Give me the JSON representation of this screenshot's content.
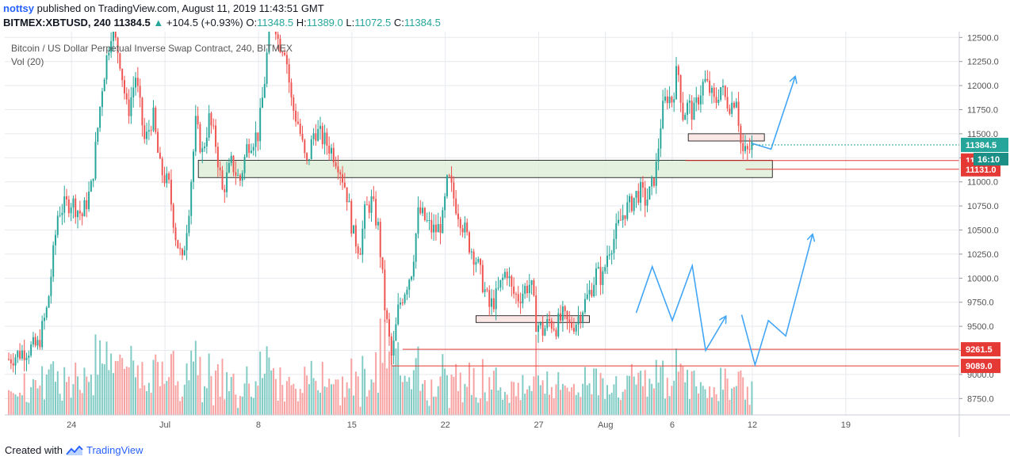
{
  "header": {
    "user": "nottsy",
    "published": "published on TradingView.com, August 11, 2019 11:43:51 GMT",
    "symbol": "BITMEX:XBTUSD, 240",
    "last": "11384.5",
    "change": "+104.5 (+0.93%)",
    "o_label": "O:",
    "o": "11348.5",
    "h_label": "H:",
    "h": "11389.0",
    "l_label": "L:",
    "l": "11072.5",
    "c_label": "C:",
    "c": "11384.5"
  },
  "legend": {
    "title": "Bitcoin / US Dollar Perpetual Inverse Swap Contract, 240, BITMEX",
    "vol": "Vol (20)"
  },
  "footer": {
    "created": "Created with",
    "brand": "TradingView"
  },
  "colors": {
    "up": "#26a69a",
    "down": "#ef5350",
    "volUp": "#80cbc4",
    "volDown": "#f7a1a1",
    "arrow": "#42a5f5",
    "zone": "#dfeed8",
    "zoneRed": "#fbe3e3",
    "grid": "#e6e9ee",
    "level": "#e53935",
    "priceTag": "#26a69a"
  },
  "chart_data": {
    "type": "candlestick",
    "y_axis_ticks": [
      8750,
      9000,
      9250,
      9500,
      9750,
      10000,
      10250,
      10500,
      10750,
      11000,
      11250,
      11500,
      11750,
      12000,
      12250,
      12500
    ],
    "y_axis_labels": [
      "8750.0",
      "9000.0",
      "9250.0",
      "9500.0",
      "9750.0",
      "10000.0",
      "10250.0",
      "10500.0",
      "10750.0",
      "11000.0",
      "11250.0",
      "11500.0",
      "11750.0",
      "12000.0",
      "12250.0",
      "12500.0"
    ],
    "ylim": [
      8580,
      12560
    ],
    "x_ticks": [
      {
        "day": 24,
        "label": "24"
      },
      {
        "day": 31,
        "label": "Jul"
      },
      {
        "day": 38,
        "label": "8"
      },
      {
        "day": 45,
        "label": "15"
      },
      {
        "day": 52,
        "label": "22"
      },
      {
        "day": 59,
        "label": "27"
      },
      {
        "day": 64,
        "label": "Aug"
      },
      {
        "day": 69,
        "label": "6"
      },
      {
        "day": 75,
        "label": "12"
      },
      {
        "day": 82,
        "label": "19"
      }
    ],
    "xlim": [
      19,
      90.5
    ],
    "close_path": [
      [
        19.3,
        9160
      ],
      [
        20.5,
        9250
      ],
      [
        21.5,
        9300
      ],
      [
        22.2,
        9700
      ],
      [
        23,
        10700
      ],
      [
        24,
        10800
      ],
      [
        24.8,
        10650
      ],
      [
        25.5,
        10950
      ],
      [
        26.3,
        12000
      ],
      [
        27,
        12600
      ],
      [
        27.6,
        12300
      ],
      [
        28.2,
        11700
      ],
      [
        28.8,
        12100
      ],
      [
        29.5,
        11400
      ],
      [
        30.1,
        11700
      ],
      [
        30.6,
        11150
      ],
      [
        31.3,
        10950
      ],
      [
        31.8,
        10450
      ],
      [
        32.3,
        10150
      ],
      [
        32.8,
        10750
      ],
      [
        33.3,
        11600
      ],
      [
        33.8,
        11300
      ],
      [
        34.3,
        11650
      ],
      [
        34.8,
        11400
      ],
      [
        35.3,
        10900
      ],
      [
        36,
        11200
      ],
      [
        36.6,
        11000
      ],
      [
        37.2,
        11400
      ],
      [
        38,
        11500
      ],
      [
        38.5,
        12100
      ],
      [
        39,
        12900
      ],
      [
        39.5,
        12450
      ],
      [
        40,
        12400
      ],
      [
        40.5,
        11800
      ],
      [
        41,
        11600
      ],
      [
        41.6,
        11150
      ],
      [
        42.2,
        11550
      ],
      [
        42.8,
        11450
      ],
      [
        43.4,
        11350
      ],
      [
        44,
        11200
      ],
      [
        44.6,
        10900
      ],
      [
        45.1,
        10450
      ],
      [
        45.6,
        10300
      ],
      [
        46,
        10700
      ],
      [
        46.5,
        10800
      ],
      [
        47,
        10500
      ],
      [
        47.5,
        9650
      ],
      [
        48,
        9150
      ],
      [
        48.5,
        9700
      ],
      [
        49,
        9900
      ],
      [
        49.5,
        10100
      ],
      [
        50,
        10700
      ],
      [
        50.5,
        10600
      ],
      [
        51,
        10500
      ],
      [
        51.4,
        10500
      ],
      [
        51.8,
        10600
      ],
      [
        52.2,
        11050
      ],
      [
        52.7,
        10800
      ],
      [
        53.2,
        10600
      ],
      [
        53.8,
        10350
      ],
      [
        54.3,
        10200
      ],
      [
        54.8,
        9950
      ],
      [
        55.3,
        9700
      ],
      [
        55.8,
        9800
      ],
      [
        56.2,
        9950
      ],
      [
        56.6,
        10100
      ],
      [
        57,
        9850
      ],
      [
        57.5,
        9800
      ],
      [
        58,
        9900
      ],
      [
        58.4,
        9950
      ],
      [
        58.8,
        9550
      ],
      [
        59.3,
        9450
      ],
      [
        59.8,
        9550
      ],
      [
        60.3,
        9500
      ],
      [
        60.8,
        9600
      ],
      [
        61.3,
        9500
      ],
      [
        61.8,
        9550
      ],
      [
        62.3,
        9700
      ],
      [
        62.8,
        9850
      ],
      [
        63.3,
        10050
      ],
      [
        63.8,
        10000
      ],
      [
        64.2,
        10300
      ],
      [
        64.6,
        10400
      ],
      [
        65,
        10550
      ],
      [
        65.4,
        10700
      ],
      [
        65.8,
        10750
      ],
      [
        66.2,
        10850
      ],
      [
        66.6,
        10900
      ],
      [
        67,
        10800
      ],
      [
        67.4,
        10900
      ],
      [
        67.8,
        11150
      ],
      [
        68.2,
        11700
      ],
      [
        68.6,
        11900
      ],
      [
        69,
        11850
      ],
      [
        69.4,
        12200
      ],
      [
        69.8,
        11700
      ],
      [
        70.2,
        11800
      ],
      [
        70.6,
        11700
      ],
      [
        71,
        11900
      ],
      [
        71.4,
        12050
      ],
      [
        71.8,
        11950
      ],
      [
        72.2,
        11800
      ],
      [
        72.6,
        12000
      ],
      [
        73,
        11850
      ],
      [
        73.4,
        11800
      ],
      [
        73.8,
        11900
      ],
      [
        74.2,
        11300
      ],
      [
        74.6,
        11300
      ],
      [
        75,
        11380
      ]
    ],
    "resistance_zones": [
      {
        "x1": 33.5,
        "x2": 76.5,
        "y1": 11045,
        "y2": 11225,
        "style": "green"
      },
      {
        "x1": 70.2,
        "x2": 75.9,
        "y1": 11425,
        "y2": 11500,
        "style": "red"
      },
      {
        "x1": 54.3,
        "x2": 62.8,
        "y1": 9540,
        "y2": 9610,
        "style": "red"
      }
    ],
    "levels": [
      {
        "value": 11222.0,
        "label": "11222.0",
        "from": 70.0
      },
      {
        "value": 11131.0,
        "label": "11131.0",
        "from": 74.5
      },
      {
        "value": 9261.5,
        "label": "9261.5",
        "from": 48.8
      },
      {
        "value": 9089.0,
        "label": "9089.0",
        "from": 48.0
      }
    ],
    "current_price": {
      "value": 11384.5,
      "label": "11384.5",
      "timer": "16:10"
    },
    "projection_arrows": [
      [
        [
          75.0,
          11400
        ],
        [
          76.4,
          11340
        ],
        [
          78.2,
          12090
        ]
      ],
      [
        [
          66.3,
          9640
        ],
        [
          67.5,
          10120
        ],
        [
          69.0,
          9560
        ],
        [
          70.5,
          10130
        ],
        [
          71.5,
          9250
        ],
        [
          73.0,
          9600
        ]
      ],
      [
        [
          74.2,
          9620
        ],
        [
          75.2,
          9100
        ],
        [
          76.2,
          9560
        ],
        [
          77.5,
          9400
        ],
        [
          79.5,
          10450
        ]
      ]
    ]
  }
}
